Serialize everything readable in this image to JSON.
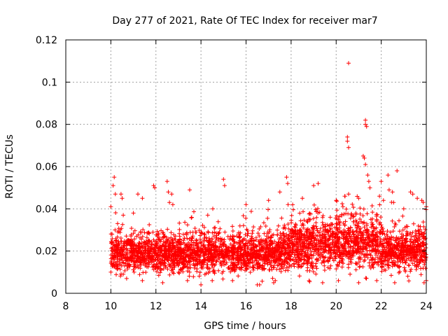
{
  "chart_data": {
    "type": "scatter",
    "title": "Day 277 of 2021, Rate Of TEC Index for receiver mar7",
    "xlabel": "GPS time / hours",
    "ylabel": "ROTI / TECUs",
    "xlim": [
      8,
      24
    ],
    "ylim": [
      0,
      0.12
    ],
    "xticks": [
      8,
      10,
      12,
      14,
      16,
      18,
      20,
      22,
      24
    ],
    "yticks": [
      0,
      0.02,
      0.04,
      0.06,
      0.08,
      0.1,
      0.12
    ],
    "ytick_labels": [
      "0",
      "0.02",
      "0.04",
      "0.06",
      "0.08",
      "0.1",
      "0.12"
    ],
    "grid": true,
    "marker": "+",
    "color": "#ff0000",
    "series": [
      {
        "name": "ROTI",
        "points": [
          [
            10.0,
            0.041
          ],
          [
            10.05,
            0.024
          ],
          [
            10.1,
            0.051
          ],
          [
            10.15,
            0.055
          ],
          [
            10.2,
            0.047
          ],
          [
            10.3,
            0.033
          ],
          [
            10.45,
            0.047
          ],
          [
            10.5,
            0.045
          ],
          [
            10.55,
            0.037
          ],
          [
            11.0,
            0.038
          ],
          [
            11.2,
            0.047
          ],
          [
            11.4,
            0.045
          ],
          [
            11.9,
            0.051
          ],
          [
            11.95,
            0.05
          ],
          [
            12.5,
            0.053
          ],
          [
            12.55,
            0.048
          ],
          [
            12.6,
            0.043
          ],
          [
            12.7,
            0.047
          ],
          [
            12.75,
            0.042
          ],
          [
            13.5,
            0.049
          ],
          [
            14.0,
            0.004
          ],
          [
            14.3,
            0.037
          ],
          [
            15.0,
            0.054
          ],
          [
            15.05,
            0.051
          ],
          [
            16.0,
            0.042
          ],
          [
            16.5,
            0.004
          ],
          [
            17.0,
            0.044
          ],
          [
            17.5,
            0.048
          ],
          [
            17.8,
            0.055
          ],
          [
            17.85,
            0.052
          ],
          [
            18.5,
            0.045
          ],
          [
            19.0,
            0.051
          ],
          [
            19.2,
            0.052
          ],
          [
            20.0,
            0.044
          ],
          [
            20.3,
            0.041
          ],
          [
            20.55,
            0.109
          ],
          [
            20.5,
            0.074
          ],
          [
            20.5,
            0.072
          ],
          [
            20.55,
            0.069
          ],
          [
            20.55,
            0.047
          ],
          [
            21.0,
            0.045
          ],
          [
            21.2,
            0.065
          ],
          [
            21.25,
            0.064
          ],
          [
            21.3,
            0.082
          ],
          [
            21.3,
            0.08
          ],
          [
            21.35,
            0.079
          ],
          [
            21.3,
            0.061
          ],
          [
            21.4,
            0.056
          ],
          [
            21.45,
            0.053
          ],
          [
            21.5,
            0.05
          ],
          [
            22.0,
            0.053
          ],
          [
            22.1,
            0.044
          ],
          [
            22.3,
            0.056
          ],
          [
            22.35,
            0.049
          ],
          [
            22.5,
            0.048
          ],
          [
            22.55,
            0.043
          ],
          [
            22.7,
            0.058
          ],
          [
            23.0,
            0.04
          ],
          [
            23.3,
            0.048
          ],
          [
            23.4,
            0.047
          ],
          [
            23.6,
            0.045
          ],
          [
            23.8,
            0.044
          ],
          [
            24.0,
            0.041
          ],
          [
            24.0,
            0.006
          ],
          [
            23.9,
            0.005
          ],
          [
            22.6,
            0.005
          ],
          [
            21.8,
            0.006
          ],
          [
            21.0,
            0.005
          ],
          [
            20.1,
            0.006
          ],
          [
            19.4,
            0.005
          ],
          [
            18.8,
            0.006
          ],
          [
            17.3,
            0.006
          ],
          [
            16.6,
            0.004
          ],
          [
            15.4,
            0.006
          ],
          [
            14.5,
            0.006
          ],
          [
            13.4,
            0.006
          ],
          [
            12.3,
            0.005
          ],
          [
            11.4,
            0.006
          ],
          [
            10.7,
            0.007
          ],
          [
            10.0,
            0.01
          ]
        ],
        "band": {
          "description_only": false,
          "samples_per_hour": 260,
          "low_mean": 0.011,
          "high_mean": 0.027,
          "segments": [
            {
              "x": [
                10.0,
                11.0
              ],
              "mid": 0.019,
              "spread": 0.008
            },
            {
              "x": [
                11.0,
                13.0
              ],
              "mid": 0.019,
              "spread": 0.008
            },
            {
              "x": [
                13.0,
                16.0
              ],
              "mid": 0.019,
              "spread": 0.008
            },
            {
              "x": [
                16.0,
                18.0
              ],
              "mid": 0.02,
              "spread": 0.009
            },
            {
              "x": [
                18.0,
                20.0
              ],
              "mid": 0.023,
              "spread": 0.01
            },
            {
              "x": [
                20.0,
                22.0
              ],
              "mid": 0.024,
              "spread": 0.011
            },
            {
              "x": [
                22.0,
                24.0
              ],
              "mid": 0.021,
              "spread": 0.009
            }
          ]
        }
      }
    ]
  }
}
